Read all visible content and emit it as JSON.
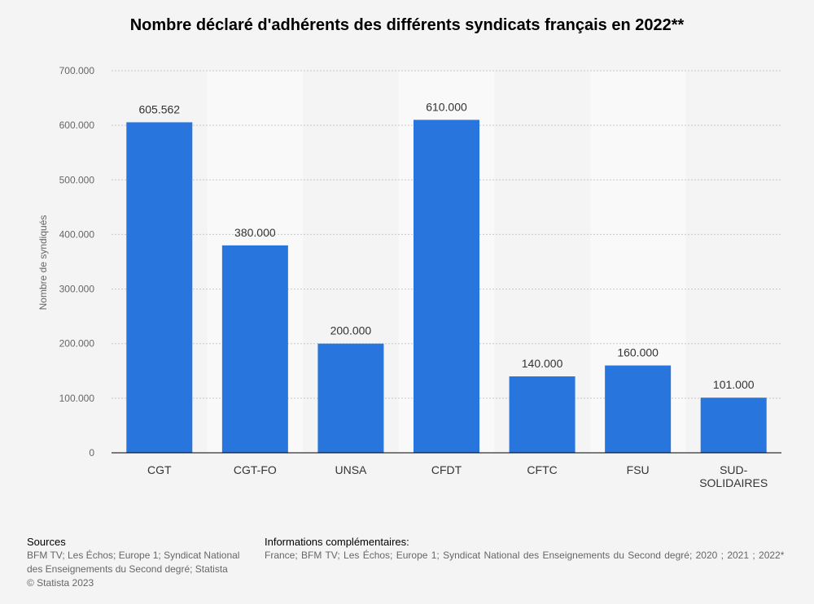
{
  "title": "Nombre déclaré d'adhérents des différents syndicats français en 2022**",
  "colors": {
    "bar": "#2876dd",
    "grid": "#c8c8c8",
    "axis": "#000000",
    "band": "#f9f9f9",
    "background": "#f4f4f4"
  },
  "chart_data": {
    "type": "bar",
    "categories": [
      "CGT",
      "CGT-FO",
      "UNSA",
      "CFDT",
      "CFTC",
      "FSU",
      "SUD-SOLIDAIRES"
    ],
    "category_labels": [
      [
        "CGT"
      ],
      [
        "CGT-FO"
      ],
      [
        "UNSA"
      ],
      [
        "CFDT"
      ],
      [
        "CFTC"
      ],
      [
        "FSU"
      ],
      [
        "SUD-",
        "SOLIDAIRES"
      ]
    ],
    "values": [
      605562,
      380000,
      200000,
      610000,
      140000,
      160000,
      101000
    ],
    "value_labels": [
      "605.562",
      "380.000",
      "200.000",
      "610.000",
      "140.000",
      "160.000",
      "101.000"
    ],
    "ylabel": "Nombre de syndiqués",
    "ylim": [
      0,
      700000
    ],
    "yticks": [
      0,
      100000,
      200000,
      300000,
      400000,
      500000,
      600000,
      700000
    ],
    "ytick_labels": [
      "0",
      "100.000",
      "200.000",
      "300.000",
      "400.000",
      "500.000",
      "600.000",
      "700.000"
    ],
    "grid": true,
    "legend": "none"
  },
  "footer": {
    "sources_heading": "Sources",
    "sources_lines": [
      "BFM TV; Les Échos; Europe 1; Syndicat National",
      "des Enseignements du Second degré; Statista",
      "© Statista 2023"
    ],
    "info_heading": "Informations complémentaires:",
    "info_text": "France; BFM TV; Les Échos; Europe 1; Syndicat National des Enseignements du Second degré; 2020 ; 2021 ; 2022*"
  }
}
